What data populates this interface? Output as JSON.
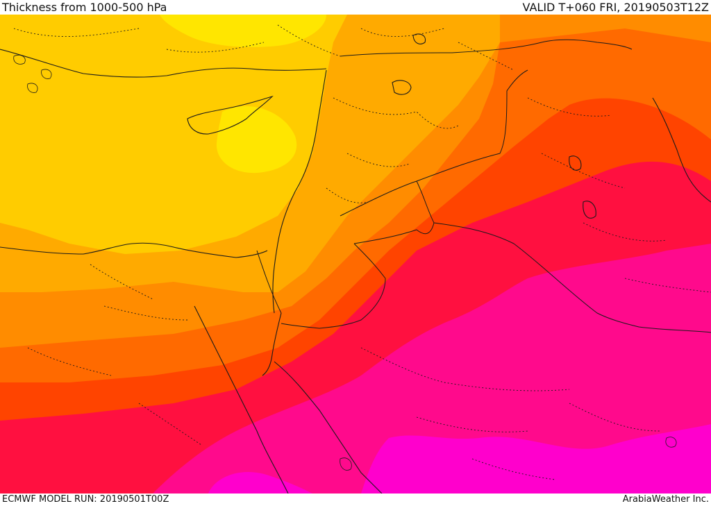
{
  "header": {
    "title": "Thickness from 1000-500 hPa",
    "valid": "VALID T+060 FRI, 20190503T12Z"
  },
  "footer": {
    "model_run": "ECMWF MODEL RUN: 20190501T00Z",
    "credit": "ArabiaWeather Inc."
  },
  "map": {
    "palette": {
      "pale_yellow": "#ffe600",
      "yellow": "#ffcc00",
      "light_orange": "#ffaa00",
      "orange": "#ff8c00",
      "dark_orange": "#ff6a00",
      "red_orange": "#ff4400",
      "red": "#ff1040",
      "crimson": "#f0105a",
      "deep_pink": "#ff0a8c",
      "magenta": "#ff00cc",
      "border": "#1a1a1a"
    }
  }
}
